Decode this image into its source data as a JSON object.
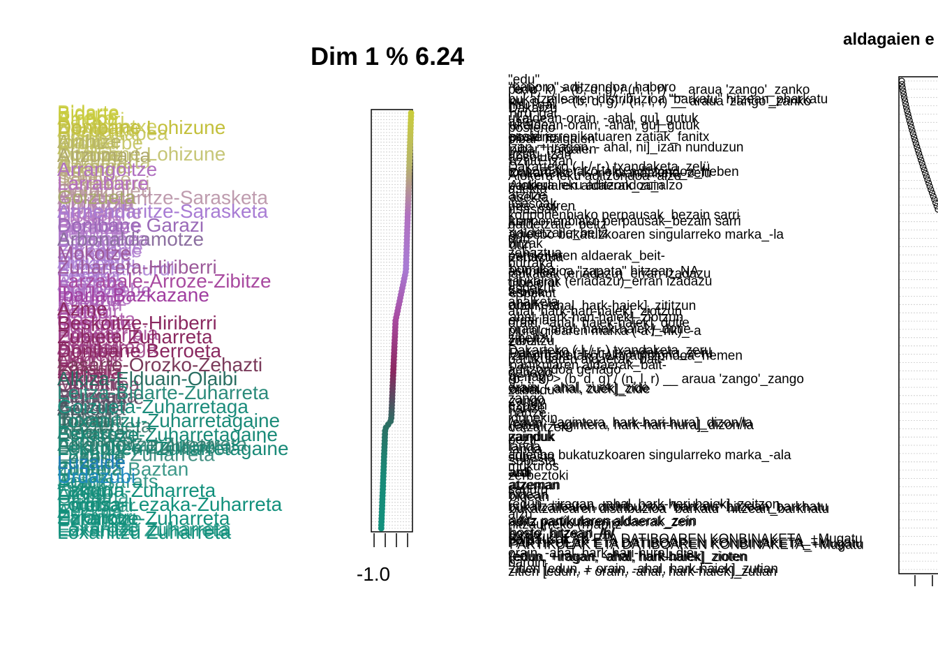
{
  "chart_data": [
    {
      "type": "scatter",
      "title": "Dim 1 % 6.24",
      "xlabel": "",
      "ylabel": "",
      "x_tick_labels": [
        "-1.0"
      ],
      "xlim": [
        -1.0,
        0.9
      ],
      "grid": true,
      "point_labels": [
        "Bidarte",
        "Erreko",
        "Ainhoa",
        "Baigorri",
        "Baztarretxe",
        "Urepele",
        "Altzürükü",
        "Sarrikotapea",
        "Urruña",
        "Urdiñarbe",
        "Ibarre",
        "Arrüe",
        "Donibane Lohizune",
        "Zuraide",
        "Ainhize",
        "Altzumarta",
        "Gamarte",
        "Azkaine",
        "Urketa",
        "Sara",
        "Senpere",
        "Itsasu",
        "Lekunberri",
        "Garazi",
        "Donapaleu",
        "Iholdi",
        "Armendaritze-Sarasketa",
        "Donoztiri",
        "Ezpeleta",
        "Amikuze",
        "Hazparne",
        "Irisarri",
        "Hiriberri",
        "Bastida",
        "Beskoitze",
        "Bardoze",
        "Orzaize",
        "Lekuine",
        "Bidaxune",
        "Bankalaza",
        "Bizkaia",
        "Larzabale",
        "Zibitze",
        "Etxebarre",
        "Mendibe",
        "Aldude",
        "Makea",
        "Urdazubi",
        "Zugarramurdi",
        "Bera",
        "Lesaka",
        "Etxalar",
        "Arantza",
        "Igantzi",
        "Sunbilla",
        "Doneztebe",
        "Elizondo",
        "Erratzu",
        "Lekaroz",
        "Arizkun",
        "Amaiur",
        "Leitza",
        "Areso",
        "Goizueta",
        "Hernani",
        "Oiartzun",
        "Irun",
        "Hondarribia",
        "Pasaia",
        "Errenteria",
        "Lezo",
        "Astigarraga",
        "Urnieta",
        "Andoain",
        "Zubieta",
        "Usurbil",
        "Orio",
        "Aia",
        "Zarautz",
        "Getaria",
        "Zumaia",
        "Deba",
        "Mutriku",
        "Ondarroa",
        "Lekeitio",
        "Ea",
        "Bermeo",
        "Mundaka",
        "Elantxobe",
        "Azpeitia",
        "Azkoitia",
        "Zestoa",
        "Errezil",
        "Bidania",
        "Tolosa",
        "Ibarra",
        "Ikaztegieta",
        "Alegia",
        "Lizartza",
        "Berastegi",
        "Elduaien",
        "Lekuine Zuharreta",
        "Arrangoitze Zuharreta",
        "Beskoitze Zuharreta",
        "Ezkurra Zuharreta",
        "Lodosa",
        "Luzaide",
        "Leoz",
        "Oronoz",
        "Ituren",
        "Zubieta Baztan",
        "Urdax",
        "Jauntsarats",
        "Betelu",
        "Araitz",
        "Larraun",
        "Atallu",
        "Lizaso",
        "Ultzama",
        "Urrotz",
        "Esteribar",
        "Erroibar",
        "Aezkoa",
        "Zaraitzu",
        "Erronkari",
        "Uztarroze",
        "Eskaroze",
        "Ezkaroze Zuharreta",
        "Loxanitzu Zuharreta"
      ],
      "emphasized_labels": [
        {
          "label": "Bidarte",
          "color": "#c9cc3c"
        },
        {
          "label": "Donibane Lohizune",
          "color": "#c3c03c"
        },
        {
          "label": "Ainhize",
          "color": "#b8b66a"
        },
        {
          "label": "Altzumarta",
          "color": "#b0aa6e"
        },
        {
          "label": "Arrangoitze",
          "color": "#b070c0"
        },
        {
          "label": "Larrabarre",
          "color": "#b56ec0"
        },
        {
          "label": "Goizueta",
          "color": "#a8a86c"
        },
        {
          "label": "Armendaritze-Sarasketa",
          "color": "#a87cd4"
        },
        {
          "label": "Donibane Garazi",
          "color": "#9a6ab8"
        },
        {
          "label": "Arbonaldiamotze",
          "color": "#8c6fa0"
        },
        {
          "label": "Mokotze",
          "color": "#9c5a9a"
        },
        {
          "label": "Zuharreta-Hiriberri",
          "color": "#9c5a9a"
        },
        {
          "label": "Larzabale-Arroze-Zibitze",
          "color": "#a84aa0"
        },
        {
          "label": "Ibarla-Bazkazane",
          "color": "#a03ea0"
        },
        {
          "label": "Azme",
          "color": "#8a2860"
        },
        {
          "label": "Beskoitze-Hiriberri",
          "color": "#8a2860"
        },
        {
          "label": "Zubieta Zuharreta",
          "color": "#8a2860"
        },
        {
          "label": "Donibane Berroeta",
          "color": "#8a2860"
        },
        {
          "label": "Lasarte-Orozko-Zehazti",
          "color": "#7a3a5a"
        },
        {
          "label": "Alkiza-Elduain-Olaibi",
          "color": "#2a6e62"
        },
        {
          "label": "Leitza-Bidarte-Zuharreta",
          "color": "#2a8a7a"
        },
        {
          "label": "Goizueta-Zuharretaga",
          "color": "#1c8c7c"
        },
        {
          "label": "Loxanitzu-Zuharretagaine",
          "color": "#1a8a78"
        },
        {
          "label": "Eskaroze-Zuharretagaine",
          "color": "#1a8a78"
        },
        {
          "label": "Lekunberri-Zuharretagaine",
          "color": "#1a8a78"
        },
        {
          "label": "Luzaide",
          "color": "#1f7db8"
        },
        {
          "label": "Urdazubi",
          "color": "#1f8ac0"
        },
        {
          "label": "Ezkurra-Zuharreta",
          "color": "#12907c"
        },
        {
          "label": "Lodosa-Lezaka-Zuharreta",
          "color": "#12907c"
        },
        {
          "label": "Ezkaroze-Zuharreta",
          "color": "#12907c"
        },
        {
          "label": "Loxanitzu Zuharreta",
          "color": "#12907c"
        }
      ]
    },
    {
      "type": "scatter",
      "title": "aldagaien e",
      "xlabel": "",
      "ylabel": "",
      "grid": true,
      "variable_labels": [
        "\"edu\"",
        "\"haboro\" aditzondoa_haboro",
        "pu, p, k) > (b, d, g) / (n, l, r) __ araua 'zango'_zanko",
        "bukatzailearen distribuzioa \"barkatu\" hitzean_pharkatu",
        "hiru_gai",
        "Dakarzu",
        "ukaldean-orain, -ahal, gu]_gutuk",
        "aste",
        "posterio",
        "esaldi errepikatuaren zatiak_fanitx",
        "pibar_haigaien",
        "izan, + iragan, - ahal, ni]_izan nunduzun",
        "uztitu_izan",
        "absoluto",
        "Dakarteko (-l-/-r-) txandaketa_zelü",
        "izenordaketako leku aditzondoa_heben",
        "Alokera leku aditzondoa_alzo",
        "partikularen aldaerak_zuin",
        "asekta",
        "atzitze",
        "itsasoak",
        "urte_ediren",
        "konponenbiako perpausak_bezain sarri",
        "juan",
        "galdetzaile_beltz",
        "adjetibo bukatuzkoaren singularreko marka_-la",
        "dun",
        "bitzak",
        "zehaztua",
        "partikularen aldaerak_beit-",
        "burraka",
        "asimilazioa \"zapata\" hitzean_NA",
        "jaukaliak (eriadazu)_erran izadazu",
        "gibelerat",
        "espekut",
        "arbola",
        "ahalketa",
        "orain, -ahal, hark-haiek], zititzun",
        "ahal, hark-hari-haiek]_ziotzun",
        "ordaria",
        "orain, -ahal, haiek-haiek]_dutie",
        "pluralgilearen marka (-a / -rik)_-a",
        "zibeltzu",
        "zortzi",
        "Dakarteko (-l-/-r-) txandaketa_zeru",
        "izenordaketako leku aditzondoa_hemen",
        "partikularen aldaerak_bait-",
        "aditzondoa geriago",
        "geriago",
        "(p, t, k) > (b, d, g) / (n, l, r) __ araua 'zango'_zango",
        "orain, - ahal, zuek]_zide",
        "zabaldu",
        "zango",
        "ezpain",
        "hartze",
        "idunekin",
        "(edun, +agintera, hark-hari-hura]_dizon/la",
        "datzaitzek",
        "zainduk",
        "bezti",
        "landa",
        "adjetibo bukatuzkoaren singularreko marka_-ala",
        "subesta",
        "mukuros",
        "ardi",
        "zerbeztoki",
        "atzeman",
        "sahutu",
        "bidean",
        "(edun, +iragan, -ahal, hark-hari-haiek]_zeitzon",
        "bukatzailearen distribuzioa \"barkatu\" hitzean_barkhatu",
        "aizu",
        "aditz partikularen aldaerak_zein",
        "hitzaurreko (h)anitz",
        "hosto\" hitzean_/h/",
        "perpausak_-n",
        "PARTIKULAK ETA DATIBOAREN KONBINAKETA_+Mugatu",
        "orain, -ahal, hark-hari-hura]_die",
        "(edun, +iragan, -ahal, hark-haiek]_zioten",
        "bardin",
        "zitien [edun, + orain, -ahal, hark-haiek]_zutian"
      ]
    }
  ]
}
